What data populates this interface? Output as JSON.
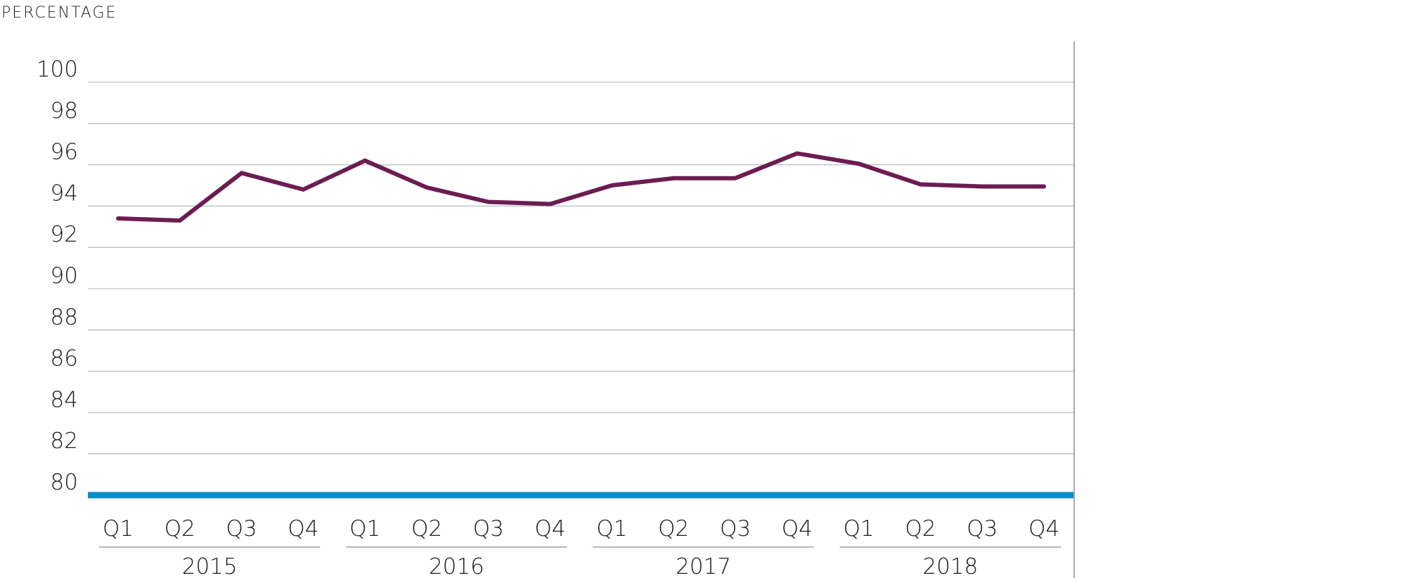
{
  "chart_data": {
    "type": "line",
    "ylabel": "PERCENTAGE",
    "ylim": [
      80,
      100
    ],
    "yticks": [
      "100",
      "98",
      "96",
      "94",
      "92",
      "90",
      "88",
      "86",
      "84",
      "82",
      "80"
    ],
    "ytick_values": [
      100,
      98,
      96,
      94,
      92,
      90,
      88,
      86,
      84,
      82,
      80
    ],
    "grid": true,
    "categories": [
      "Q1",
      "Q2",
      "Q3",
      "Q4",
      "Q1",
      "Q2",
      "Q3",
      "Q4",
      "Q1",
      "Q2",
      "Q3",
      "Q4",
      "Q1",
      "Q2",
      "Q3",
      "Q4"
    ],
    "groups": [
      {
        "label": "2015",
        "quarters": [
          "Q1",
          "Q2",
          "Q3",
          "Q4"
        ]
      },
      {
        "label": "2016",
        "quarters": [
          "Q1",
          "Q2",
          "Q3",
          "Q4"
        ]
      },
      {
        "label": "2017",
        "quarters": [
          "Q1",
          "Q2",
          "Q3",
          "Q4"
        ]
      },
      {
        "label": "2018",
        "quarters": [
          "Q1",
          "Q2",
          "Q3",
          "Q4"
        ]
      }
    ],
    "series": [
      {
        "name": "Percentage",
        "color": "#6b1d52",
        "values": [
          93.4,
          93.3,
          95.6,
          94.8,
          96.2,
          94.9,
          94.2,
          94.1,
          95.0,
          95.35,
          95.35,
          96.55,
          96.05,
          95.05,
          94.95,
          94.95
        ]
      }
    ],
    "baseline": {
      "value": 80,
      "color": "#0a8cc4"
    },
    "grid_color": "#c3c8cd",
    "axis_color": "#a3abb1",
    "bracket_color": "#a89ca2"
  }
}
